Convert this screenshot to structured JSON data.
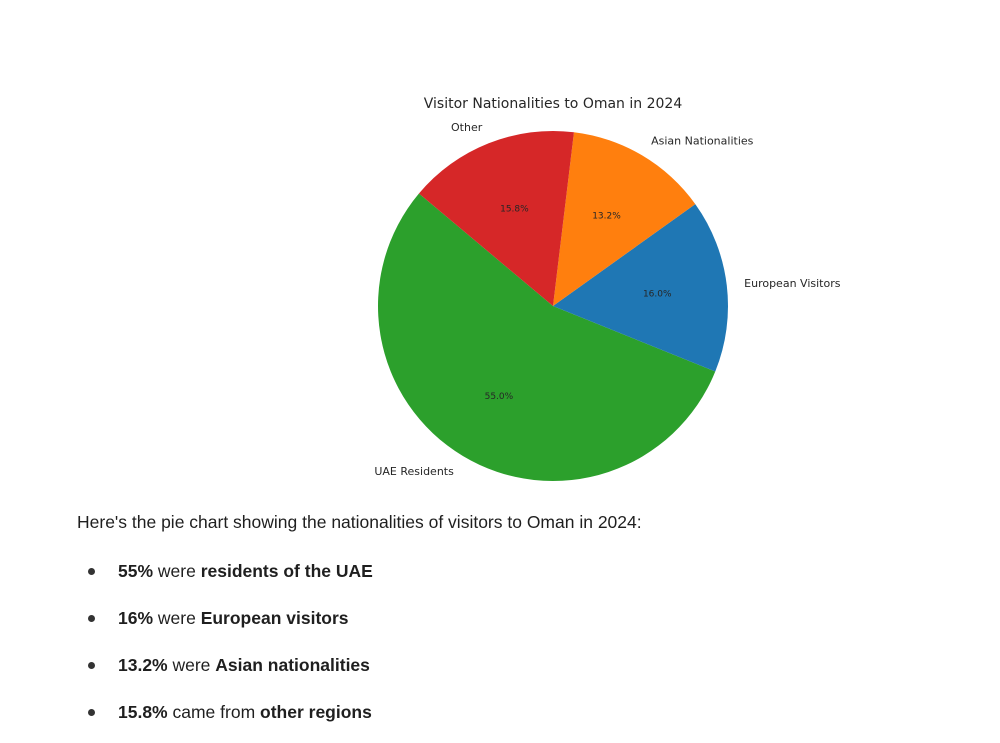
{
  "chart_data": {
    "type": "pie",
    "title": "Visitor Nationalities to Oman in 2024",
    "slices": [
      {
        "label": "UAE Residents",
        "value": 55.0,
        "pct_label": "55.0%",
        "color": "#2ca02c"
      },
      {
        "label": "European Visitors",
        "value": 16.0,
        "pct_label": "16.0%",
        "color": "#1f77b4"
      },
      {
        "label": "Asian Nationalities",
        "value": 13.2,
        "pct_label": "13.2%",
        "color": "#ff7f0e"
      },
      {
        "label": "Other",
        "value": 15.8,
        "pct_label": "15.8%",
        "color": "#d62728"
      }
    ]
  },
  "summary": {
    "intro": "Here's the pie chart showing the nationalities of visitors to Oman in 2024:",
    "points": [
      {
        "strong1": "55%",
        "text": " were ",
        "strong2": "residents of the UAE"
      },
      {
        "strong1": "16%",
        "text": " were ",
        "strong2": "European visitors"
      },
      {
        "strong1": "13.2%",
        "text": " were ",
        "strong2": "Asian nationalities"
      },
      {
        "strong1": "15.8%",
        "text": " came from ",
        "strong2": "other regions"
      }
    ]
  }
}
